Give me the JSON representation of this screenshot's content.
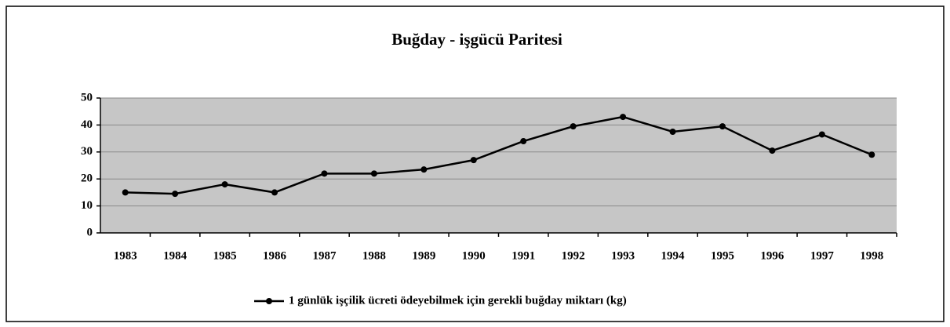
{
  "chart_data": {
    "type": "line",
    "title": "Buğday - işgücü  Paritesi",
    "categories": [
      "1983",
      "1984",
      "1985",
      "1986",
      "1987",
      "1988",
      "1989",
      "1990",
      "1991",
      "1992",
      "1993",
      "1994",
      "1995",
      "1996",
      "1997",
      "1998"
    ],
    "series": [
      {
        "name": "1 günlük işçilik ücreti ödeyebilmek için gerekli buğday miktarı (kg)",
        "color": "#000000",
        "values": [
          15,
          14.5,
          18,
          15,
          22,
          22,
          23.5,
          27,
          34,
          39.5,
          43,
          37.5,
          39.5,
          30.5,
          36.5,
          29
        ]
      }
    ],
    "ylim": [
      0,
      50
    ],
    "yticks": [
      0,
      10,
      20,
      30,
      40,
      50
    ],
    "grid": true,
    "legend": "bottom"
  }
}
